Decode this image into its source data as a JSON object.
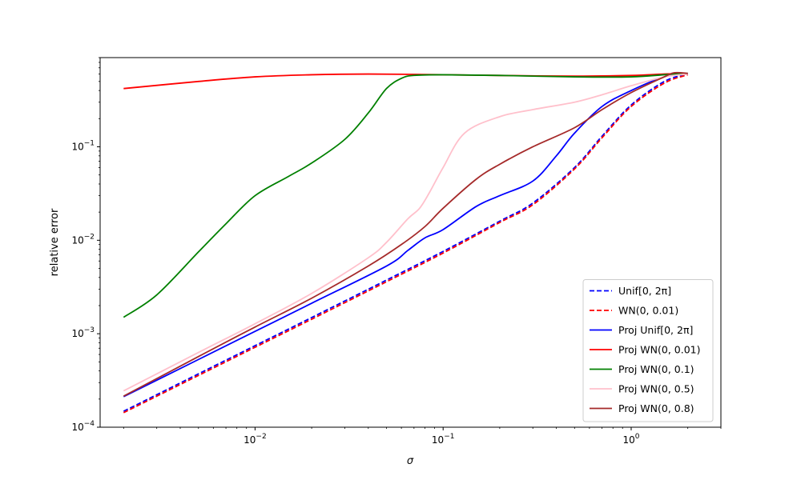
{
  "chart_data": {
    "type": "line",
    "title": "",
    "xlabel": "σ",
    "ylabel": "relative error",
    "xscale": "log",
    "yscale": "log",
    "xlim": [
      0.0015,
      3.0
    ],
    "ylim": [
      0.0001,
      0.9
    ],
    "grid": false,
    "legend_position": "lower-right",
    "x_ticks": [
      {
        "value": 0.01,
        "base": "10",
        "exp": "−2"
      },
      {
        "value": 0.1,
        "base": "10",
        "exp": "−1"
      },
      {
        "value": 1,
        "base": "10",
        "exp": "0"
      }
    ],
    "y_ticks": [
      {
        "value": 0.0001,
        "base": "10",
        "exp": "−4"
      },
      {
        "value": 0.001,
        "base": "10",
        "exp": "−3"
      },
      {
        "value": 0.01,
        "base": "10",
        "exp": "−2"
      },
      {
        "value": 0.1,
        "base": "10",
        "exp": "−1"
      }
    ],
    "series": [
      {
        "name": "Unif[0, 2π]",
        "color": "#0000ff",
        "dash": "dashed",
        "points": [
          [
            0.002,
            0.000148
          ],
          [
            0.005,
            0.000372
          ],
          [
            0.01,
            0.000745
          ],
          [
            0.02,
            0.00149
          ],
          [
            0.05,
            0.00375
          ],
          [
            0.1,
            0.0076
          ],
          [
            0.2,
            0.016
          ],
          [
            0.3,
            0.025
          ],
          [
            0.5,
            0.06
          ],
          [
            0.7,
            0.13
          ],
          [
            1.0,
            0.28
          ],
          [
            1.5,
            0.5
          ],
          [
            2.0,
            0.6
          ]
        ]
      },
      {
        "name": "WN(0, 0.01)",
        "color": "#ff0000",
        "dash": "dashed",
        "points": [
          [
            0.002,
            0.000143
          ],
          [
            0.005,
            0.000358
          ],
          [
            0.01,
            0.000716
          ],
          [
            0.02,
            0.00143
          ],
          [
            0.05,
            0.0036
          ],
          [
            0.1,
            0.0073
          ],
          [
            0.2,
            0.0155
          ],
          [
            0.3,
            0.024
          ],
          [
            0.5,
            0.058
          ],
          [
            0.7,
            0.125
          ],
          [
            1.0,
            0.27
          ],
          [
            1.5,
            0.48
          ],
          [
            2.0,
            0.59
          ]
        ]
      },
      {
        "name": "Proj Unif[0, 2π]",
        "color": "#0000ff",
        "dash": "solid",
        "points": [
          [
            0.002,
            0.000212
          ],
          [
            0.005,
            0.00053
          ],
          [
            0.01,
            0.00106
          ],
          [
            0.02,
            0.00212
          ],
          [
            0.05,
            0.0053
          ],
          [
            0.065,
            0.0078
          ],
          [
            0.08,
            0.0106
          ],
          [
            0.1,
            0.013
          ],
          [
            0.15,
            0.023
          ],
          [
            0.2,
            0.03
          ],
          [
            0.3,
            0.043
          ],
          [
            0.4,
            0.08
          ],
          [
            0.5,
            0.14
          ],
          [
            0.7,
            0.27
          ],
          [
            1.0,
            0.4
          ],
          [
            1.5,
            0.56
          ],
          [
            2.0,
            0.61
          ]
        ]
      },
      {
        "name": "Proj WN(0, 0.01)",
        "color": "#ff0000",
        "dash": "solid",
        "points": [
          [
            0.002,
            0.42
          ],
          [
            0.005,
            0.5
          ],
          [
            0.01,
            0.56
          ],
          [
            0.02,
            0.59
          ],
          [
            0.04,
            0.6
          ],
          [
            0.1,
            0.59
          ],
          [
            0.2,
            0.58
          ],
          [
            0.5,
            0.57
          ],
          [
            1.0,
            0.58
          ],
          [
            1.5,
            0.6
          ],
          [
            2.0,
            0.61
          ]
        ]
      },
      {
        "name": "Proj WN(0, 0.1)",
        "color": "#008000",
        "dash": "solid",
        "points": [
          [
            0.002,
            0.0015
          ],
          [
            0.003,
            0.0026
          ],
          [
            0.005,
            0.0075
          ],
          [
            0.007,
            0.015
          ],
          [
            0.01,
            0.03
          ],
          [
            0.015,
            0.048
          ],
          [
            0.02,
            0.067
          ],
          [
            0.03,
            0.12
          ],
          [
            0.04,
            0.23
          ],
          [
            0.05,
            0.42
          ],
          [
            0.06,
            0.54
          ],
          [
            0.07,
            0.58
          ],
          [
            0.1,
            0.59
          ],
          [
            0.2,
            0.58
          ],
          [
            0.5,
            0.56
          ],
          [
            1.0,
            0.56
          ],
          [
            1.5,
            0.59
          ],
          [
            2.0,
            0.61
          ]
        ]
      },
      {
        "name": "Proj WN(0, 0.5)",
        "color": "#ffc0cb",
        "dash": "solid",
        "points": [
          [
            0.002,
            0.000245
          ],
          [
            0.005,
            0.00063
          ],
          [
            0.01,
            0.00128
          ],
          [
            0.02,
            0.0027
          ],
          [
            0.04,
            0.0065
          ],
          [
            0.05,
            0.0095
          ],
          [
            0.065,
            0.017
          ],
          [
            0.075,
            0.022
          ],
          [
            0.085,
            0.033
          ],
          [
            0.1,
            0.06
          ],
          [
            0.13,
            0.14
          ],
          [
            0.2,
            0.21
          ],
          [
            0.3,
            0.25
          ],
          [
            0.5,
            0.3
          ],
          [
            0.7,
            0.36
          ],
          [
            1.0,
            0.45
          ],
          [
            1.5,
            0.56
          ],
          [
            2.0,
            0.6
          ]
        ]
      },
      {
        "name": "Proj WN(0, 0.8)",
        "color": "#a52a2a",
        "dash": "solid",
        "points": [
          [
            0.002,
            0.000215
          ],
          [
            0.005,
            0.00057
          ],
          [
            0.01,
            0.00118
          ],
          [
            0.02,
            0.0024
          ],
          [
            0.04,
            0.0053
          ],
          [
            0.06,
            0.009
          ],
          [
            0.08,
            0.014
          ],
          [
            0.1,
            0.022
          ],
          [
            0.15,
            0.045
          ],
          [
            0.2,
            0.065
          ],
          [
            0.3,
            0.1
          ],
          [
            0.5,
            0.16
          ],
          [
            0.7,
            0.25
          ],
          [
            1.0,
            0.38
          ],
          [
            1.5,
            0.56
          ],
          [
            1.7,
            0.62
          ],
          [
            2.0,
            0.61
          ]
        ]
      }
    ]
  }
}
